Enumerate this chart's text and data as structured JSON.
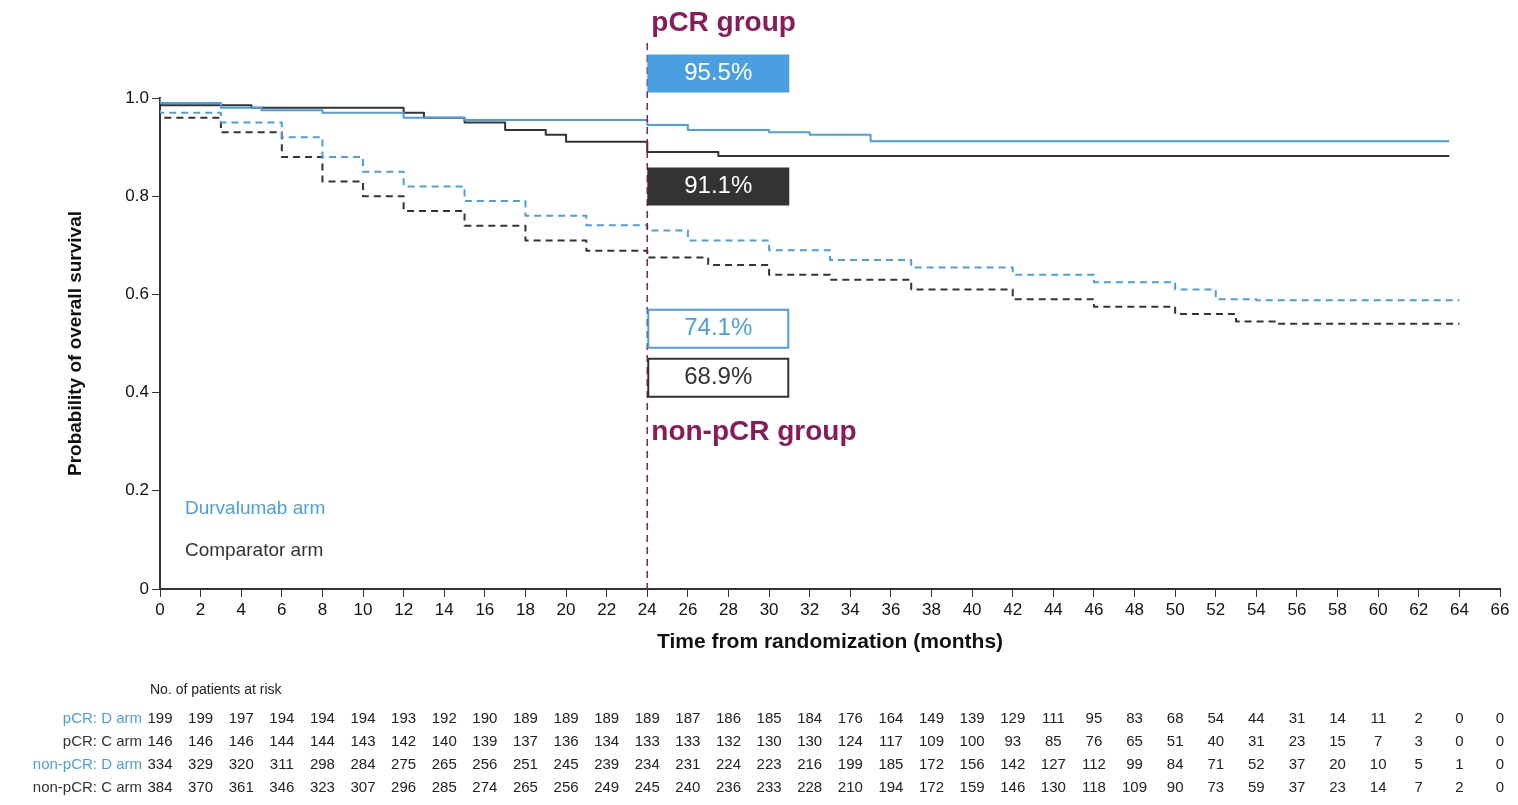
{
  "chart_data": {
    "type": "step",
    "xlabel": "Time from randomization (months)",
    "ylabel": "Probability of overall survival",
    "xlim": [
      0,
      66
    ],
    "xticks": [
      0,
      2,
      4,
      6,
      8,
      10,
      12,
      14,
      16,
      18,
      20,
      22,
      24,
      26,
      28,
      30,
      32,
      34,
      36,
      38,
      40,
      42,
      44,
      46,
      48,
      50,
      52,
      54,
      56,
      58,
      60,
      62,
      64,
      66
    ],
    "ylim": [
      0,
      1.0
    ],
    "yticks": [
      0,
      0.2,
      0.4,
      0.6,
      0.8,
      {
        "value": 1.0,
        "label": "1.0"
      }
    ],
    "grid": false,
    "legend": "bottom left",
    "marker": "none",
    "series": [
      {
        "name": "Durvalumab arm",
        "color": "#4a9fe0",
        "line_style": "solid",
        "x": [
          0,
          3,
          5,
          8,
          12,
          15,
          19,
          24,
          26,
          30,
          32,
          35,
          36.5,
          63.5
        ],
        "values": [
          1,
          0.99,
          0.98,
          0.975,
          0.97,
          0.96,
          0.955,
          0.955,
          0.945,
          0.935,
          0.93,
          0.925,
          0.912,
          0.912
        ]
      },
      {
        "name": "Comparator arm",
        "color": "#333333",
        "line_style": "solid",
        "x": [
          0,
          4.5,
          12,
          13,
          15,
          17,
          19,
          20,
          22.5,
          24,
          27.5,
          30,
          63.5
        ],
        "values": [
          1,
          0.985,
          0.98,
          0.97,
          0.96,
          0.95,
          0.935,
          0.925,
          0.911,
          0.911,
          0.89,
          0.882,
          0.882
        ]
      },
      {
        "color": "#4a9fe0",
        "line_style": "dashed",
        "x": [
          0,
          3,
          6,
          8,
          10,
          12,
          15,
          18,
          21,
          24,
          26,
          30,
          33,
          37,
          42,
          46,
          50,
          52,
          54,
          64
        ],
        "values": [
          1,
          0.97,
          0.95,
          0.92,
          0.88,
          0.85,
          0.82,
          0.79,
          0.76,
          0.741,
          0.73,
          0.71,
          0.69,
          0.67,
          0.655,
          0.64,
          0.625,
          0.61,
          0.59,
          0.588
        ]
      },
      {
        "color": "#333333",
        "line_style": "dashed",
        "x": [
          0,
          3,
          6,
          8,
          10,
          12,
          15,
          18,
          21,
          24,
          27,
          30,
          33,
          37,
          42,
          46,
          50,
          53,
          55,
          64
        ],
        "values": [
          1,
          0.96,
          0.93,
          0.88,
          0.83,
          0.8,
          0.77,
          0.74,
          0.71,
          0.689,
          0.675,
          0.66,
          0.64,
          0.63,
          0.61,
          0.59,
          0.575,
          0.56,
          0.545,
          0.54
        ]
      }
    ],
    "ref_lines": [
      {
        "axis": "x",
        "value": 24,
        "color": "#8b1a5a",
        "line_style": "dashed"
      }
    ],
    "annotations": [
      "95.5%",
      "91.1%",
      "74.1%",
      "68.9%",
      "pCR group",
      "non-pCR group",
      "No. of patients at risk",
      "pCR: D arm",
      "199 199 197 194 194 194 193 192 190 189 189 189 189 187 186 185 184 176 164 149 139 129 111 95 83 68 54 44 31 14 11 2 0 0",
      "pCR: C arm",
      "146 146 146 144 144 143 142 140 139 137 136 134 133 133 132 130 130 124 117 109 100 93 85 76 65 51 40 31 23 15 7 3 0 0",
      "non-pCR: D arm",
      "334 329 320 311 298 284 275 265 256 251 245 239 234 231 224 223 216 199 185 172 156 142 127 112 99 84 71 52 37 20 10 5 1 0",
      "non-pCR: C arm",
      "384 370 361 346 323 307 296 285 274 265 256 249 245 240 236 233 228 210 194 172 159 146 130 118 109 90 73 59 37 23 14 7 2 0"
    ]
  }
}
